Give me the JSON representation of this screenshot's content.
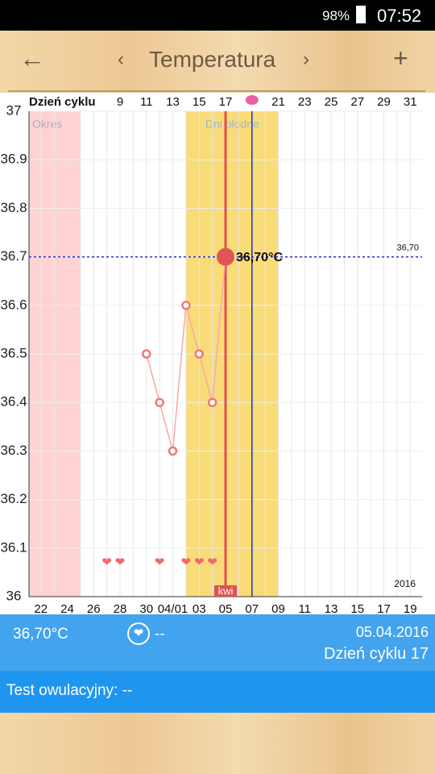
{
  "status_bar": {
    "battery": "98%",
    "time": "07:52"
  },
  "toolbar": {
    "title": "Temperatura"
  },
  "chart_data": {
    "type": "line",
    "x_axis_label": "Dzień cyklu",
    "x": [
      11,
      12,
      13,
      14,
      15,
      16,
      17
    ],
    "values": [
      36.5,
      36.4,
      36.3,
      36.6,
      36.5,
      36.4,
      36.7
    ],
    "point_label": "36,70°C",
    "reference_line": {
      "value": 36.7,
      "label": "36,70"
    },
    "color": "#f07878",
    "xlim": [
      2.1,
      31.9
    ],
    "ylim": [
      36,
      37
    ],
    "yticks": [
      37,
      36.9,
      36.8,
      36.7,
      36.6,
      36.5,
      36.4,
      36.3,
      36.2,
      36.1,
      36
    ],
    "cycle_day_ticks": [
      9,
      11,
      13,
      15,
      17,
      21,
      23,
      25,
      27,
      29,
      31
    ],
    "date_ticks": [
      {
        "value": 3,
        "label": "22"
      },
      {
        "value": 5,
        "label": "24"
      },
      {
        "value": 7,
        "label": "26"
      },
      {
        "value": 9,
        "label": "28"
      },
      {
        "value": 11,
        "label": "30"
      },
      {
        "value": 13,
        "label": "04/01"
      },
      {
        "value": 15,
        "label": "03"
      },
      {
        "value": 17,
        "label": "05"
      },
      {
        "value": 19,
        "label": "07"
      },
      {
        "value": 21,
        "label": "09"
      },
      {
        "value": 23,
        "label": "11"
      },
      {
        "value": 25,
        "label": "13"
      },
      {
        "value": 27,
        "label": "15"
      },
      {
        "value": 29,
        "label": "17"
      },
      {
        "value": 31,
        "label": "19"
      }
    ],
    "bands": [
      {
        "label": "Okres",
        "from": 2.1,
        "to": 6,
        "color": "#ffd3d3"
      },
      {
        "label": "Dni płodne",
        "from": 14,
        "to": 21,
        "color": "#f9dc78"
      }
    ],
    "selected_day": 17,
    "ovulation_day": 19,
    "hearts": [
      8,
      9,
      12,
      14,
      15,
      16
    ],
    "month_label": "kwi",
    "year_label": "2016"
  },
  "footer": {
    "temperature": "36,70°C",
    "intercourse": "--",
    "date": "05.04.2016",
    "cycle_day": "Dzień cyklu 17",
    "ovulation_test": "Test owulacyjny: --"
  }
}
